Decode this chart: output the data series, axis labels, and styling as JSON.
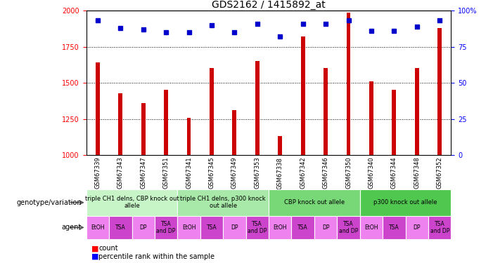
{
  "title": "GDS2162 / 1415892_at",
  "samples": [
    "GSM67339",
    "GSM67343",
    "GSM67347",
    "GSM67351",
    "GSM67341",
    "GSM67345",
    "GSM67349",
    "GSM67353",
    "GSM67338",
    "GSM67342",
    "GSM67346",
    "GSM67350",
    "GSM67340",
    "GSM67344",
    "GSM67348",
    "GSM67352"
  ],
  "counts": [
    1640,
    1430,
    1360,
    1450,
    1260,
    1600,
    1310,
    1650,
    1130,
    1820,
    1600,
    1985,
    1510,
    1450,
    1600,
    1880
  ],
  "percentiles": [
    93,
    88,
    87,
    85,
    85,
    90,
    85,
    91,
    82,
    91,
    91,
    93,
    86,
    86,
    89,
    93
  ],
  "bar_color": "#cc0000",
  "dot_color": "#0000cc",
  "ylim_left": [
    1000,
    2000
  ],
  "ylim_right": [
    0,
    100
  ],
  "yticks_left": [
    1000,
    1250,
    1500,
    1750,
    2000
  ],
  "yticks_right": [
    0,
    25,
    50,
    75,
    100
  ],
  "geno_colors": [
    "#c8f5c8",
    "#a8e8a8",
    "#78d878",
    "#50c850"
  ],
  "geno_labels": [
    "triple CH1 delns, CBP knock out\nallele",
    "triple CH1 delns, p300 knock\nout allele",
    "CBP knock out allele",
    "p300 knock out allele"
  ],
  "agent_labels": [
    "EtOH",
    "TSA",
    "DP",
    "TSA\nand DP",
    "EtOH",
    "TSA",
    "DP",
    "TSA\nand DP",
    "EtOH",
    "TSA",
    "DP",
    "TSA\nand DP",
    "EtOH",
    "TSA",
    "DP",
    "TSA\nand DP"
  ],
  "agent_color_light": "#ee82ee",
  "agent_color_dark": "#cc44cc",
  "xtick_bg": "#d8d8d8"
}
